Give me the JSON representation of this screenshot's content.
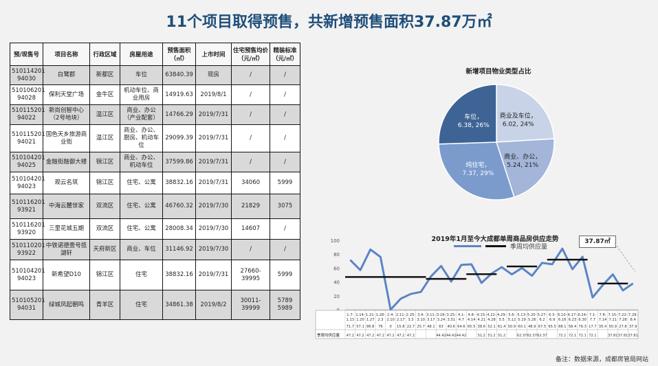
{
  "title": "11个项目取得预售，共新增预售面积37.87万㎡",
  "table": {
    "headers": [
      "预/现售号",
      "项目名称",
      "行政区域",
      "房屋用途",
      "预售面积（㎡）",
      "上市时间",
      "住宅预售均价（元/㎡）",
      "精装标准（元/㎡）"
    ],
    "rows": [
      {
        "no": "510114201 94030",
        "name": "白鹭郡",
        "district": "新都区",
        "use": "车位",
        "area": "63840.39",
        "date": "现房",
        "price": "/",
        "deco": "/"
      },
      {
        "no": "510106201 94028",
        "name": "保利天堂广场",
        "district": "金牛区",
        "use": "机动车位、商业用房",
        "area": "14919.63",
        "date": "2019/8/1",
        "price": "/",
        "deco": "/"
      },
      {
        "no": "510115201 94022",
        "name": "新尚创智中心（2号地块）",
        "district": "温江区",
        "use": "商业、办公（产业配套）",
        "area": "14766.29",
        "date": "2019/7/31",
        "price": "/",
        "deco": "/"
      },
      {
        "no": "510115201 94021",
        "name": "国色天乡旅游商业街",
        "district": "温江区",
        "use": "商业、办公、厨房、机动车位",
        "area": "29099.39",
        "date": "2019/7/31",
        "price": "/",
        "deco": "/"
      },
      {
        "no": "510104201 94025",
        "name": "金融街融御大楼",
        "district": "锦江区",
        "use": "商业、办公、机动车位",
        "area": "37599.86",
        "date": "2019/7/31",
        "price": "/",
        "deco": "/"
      },
      {
        "no": "510104201 94023",
        "name": "观云名筑",
        "district": "锦江区",
        "use": "住宅、公寓",
        "area": "38832.16",
        "date": "2019/7/31",
        "price": "34060",
        "deco": "5999"
      },
      {
        "no": "510116201 93921",
        "name": "中海云麓世家",
        "district": "双流区",
        "use": "住宅、公寓",
        "area": "46760.32",
        "date": "2019/7/30",
        "price": "21829",
        "deco": "3075"
      },
      {
        "no": "510116201 93920",
        "name": "三里花城五期",
        "district": "双流区",
        "use": "住宅、公寓",
        "area": "28008.34",
        "date": "2019/7/30",
        "price": "14607",
        "deco": "/"
      },
      {
        "no": "510110201 93922",
        "name": "中铁诺德壹号揽湖轩",
        "district": "天府新区",
        "use": "商业、车位",
        "area": "31146.92",
        "date": "2019/7/30",
        "price": "/",
        "deco": "/"
      },
      {
        "no": "510104201 94023",
        "name": "新希望D10",
        "district": "锦江区",
        "use": "住宅",
        "area": "38832.16",
        "date": "2019/7/31",
        "price": "27660-39995",
        "deco": "5999"
      },
      {
        "no": "510105201 94031",
        "name": "绿城凤起朝鸣",
        "district": "青羊区",
        "use": "住宅",
        "area": "34861.38",
        "date": "2019/8/2",
        "price": "30011-39999",
        "deco": "5789 5989"
      }
    ]
  },
  "note": "备注：数据来源，成都房管局网站",
  "pie_title": "新增项目物业类型占比",
  "line_title": "2019年1月至今大成都单周商品房供应走势",
  "legend_label": "季周均供应量",
  "callout": "37.87㎡",
  "row_label": "季周均供应量",
  "colors": {
    "pie": [
      "#c9d3e8",
      "#a3b6d9",
      "#7b9bcd",
      "#3e6496"
    ],
    "line": "#5b84c4"
  },
  "chart_data": [
    {
      "type": "pie",
      "title": "新增项目物业类型占比",
      "slices": [
        {
          "label": "商业及车位",
          "value": 6.02,
          "pct": "24%"
        },
        {
          "label": "商业、办公",
          "value": 5.24,
          "pct": "21%"
        },
        {
          "label": "纯住宅",
          "value": 7.37,
          "pct": "29%"
        },
        {
          "label": "车位",
          "value": 6.38,
          "pct": "26%"
        }
      ]
    },
    {
      "type": "line",
      "title": "2019年1月至今大成都单周商品房供应走势",
      "ylim": [
        0,
        100
      ],
      "yticks": [
        0,
        20,
        40,
        60,
        80,
        100
      ],
      "categories": [
        "1.7-1.13",
        "1.14-1.20",
        "1.21-1.27",
        "1.28-2.3",
        "2.4-2.10",
        "2.11-2.17",
        "2.25-3.3",
        "3.4-3.10",
        "3.11-3.17",
        "3.18-3.24",
        "3.25-3.31",
        "4.1-4.7",
        "4.8-4.14",
        "4.15-4.21",
        "4.22-4.28",
        "4.29-5.5",
        "5.6-5.12",
        "5.13-5.19",
        "5.20-5.26",
        "5.27-6.2",
        "6.3-6.9",
        "6.10-6.16",
        "6.17-6.23",
        "6.24-6.30",
        "7.1-7.7",
        "7.8-7.14",
        "7.15-7.21",
        "7.22-7.28",
        "7.29-8.4"
      ],
      "values": [
        71.7,
        57.1,
        86.8,
        76,
        0,
        15.8,
        22.7,
        25.7,
        48.1,
        63,
        40.6,
        64.6,
        65.5,
        38.6,
        52.1,
        61.4,
        50.9,
        60.1,
        48.9,
        67.5,
        65.5,
        88.1,
        58.4,
        76.3,
        17.7,
        35.4,
        50.9,
        27.8,
        37.9
      ],
      "series": [
        {
          "name": "季周均供应量",
          "segments": [
            {
              "start": 0,
              "end": 7,
              "value": 47.2
            },
            {
              "start": 8,
              "end": 11,
              "value": 44.4
            },
            {
              "start": 12,
              "end": 14,
              "value": 51.2
            },
            {
              "start": 16,
              "end": 18,
              "value": 62.4
            },
            {
              "start": 20,
              "end": 23,
              "value": 72.1
            },
            {
              "start": 25,
              "end": 27,
              "value": 37.8
            }
          ]
        }
      ],
      "avg_row": [
        "47.2",
        "47.2",
        "47.2",
        "47.2",
        "47.2",
        "47.2",
        "47.2",
        "",
        "",
        "44.42",
        "44.42",
        "44.42",
        "",
        "51.2",
        "51.2",
        "51.2",
        "",
        "62.37",
        "62.37",
        "62.37",
        "",
        "72.1",
        "72.1",
        "72.1",
        "72.1",
        "",
        "37.81",
        "37.81",
        "37.81"
      ]
    }
  ]
}
